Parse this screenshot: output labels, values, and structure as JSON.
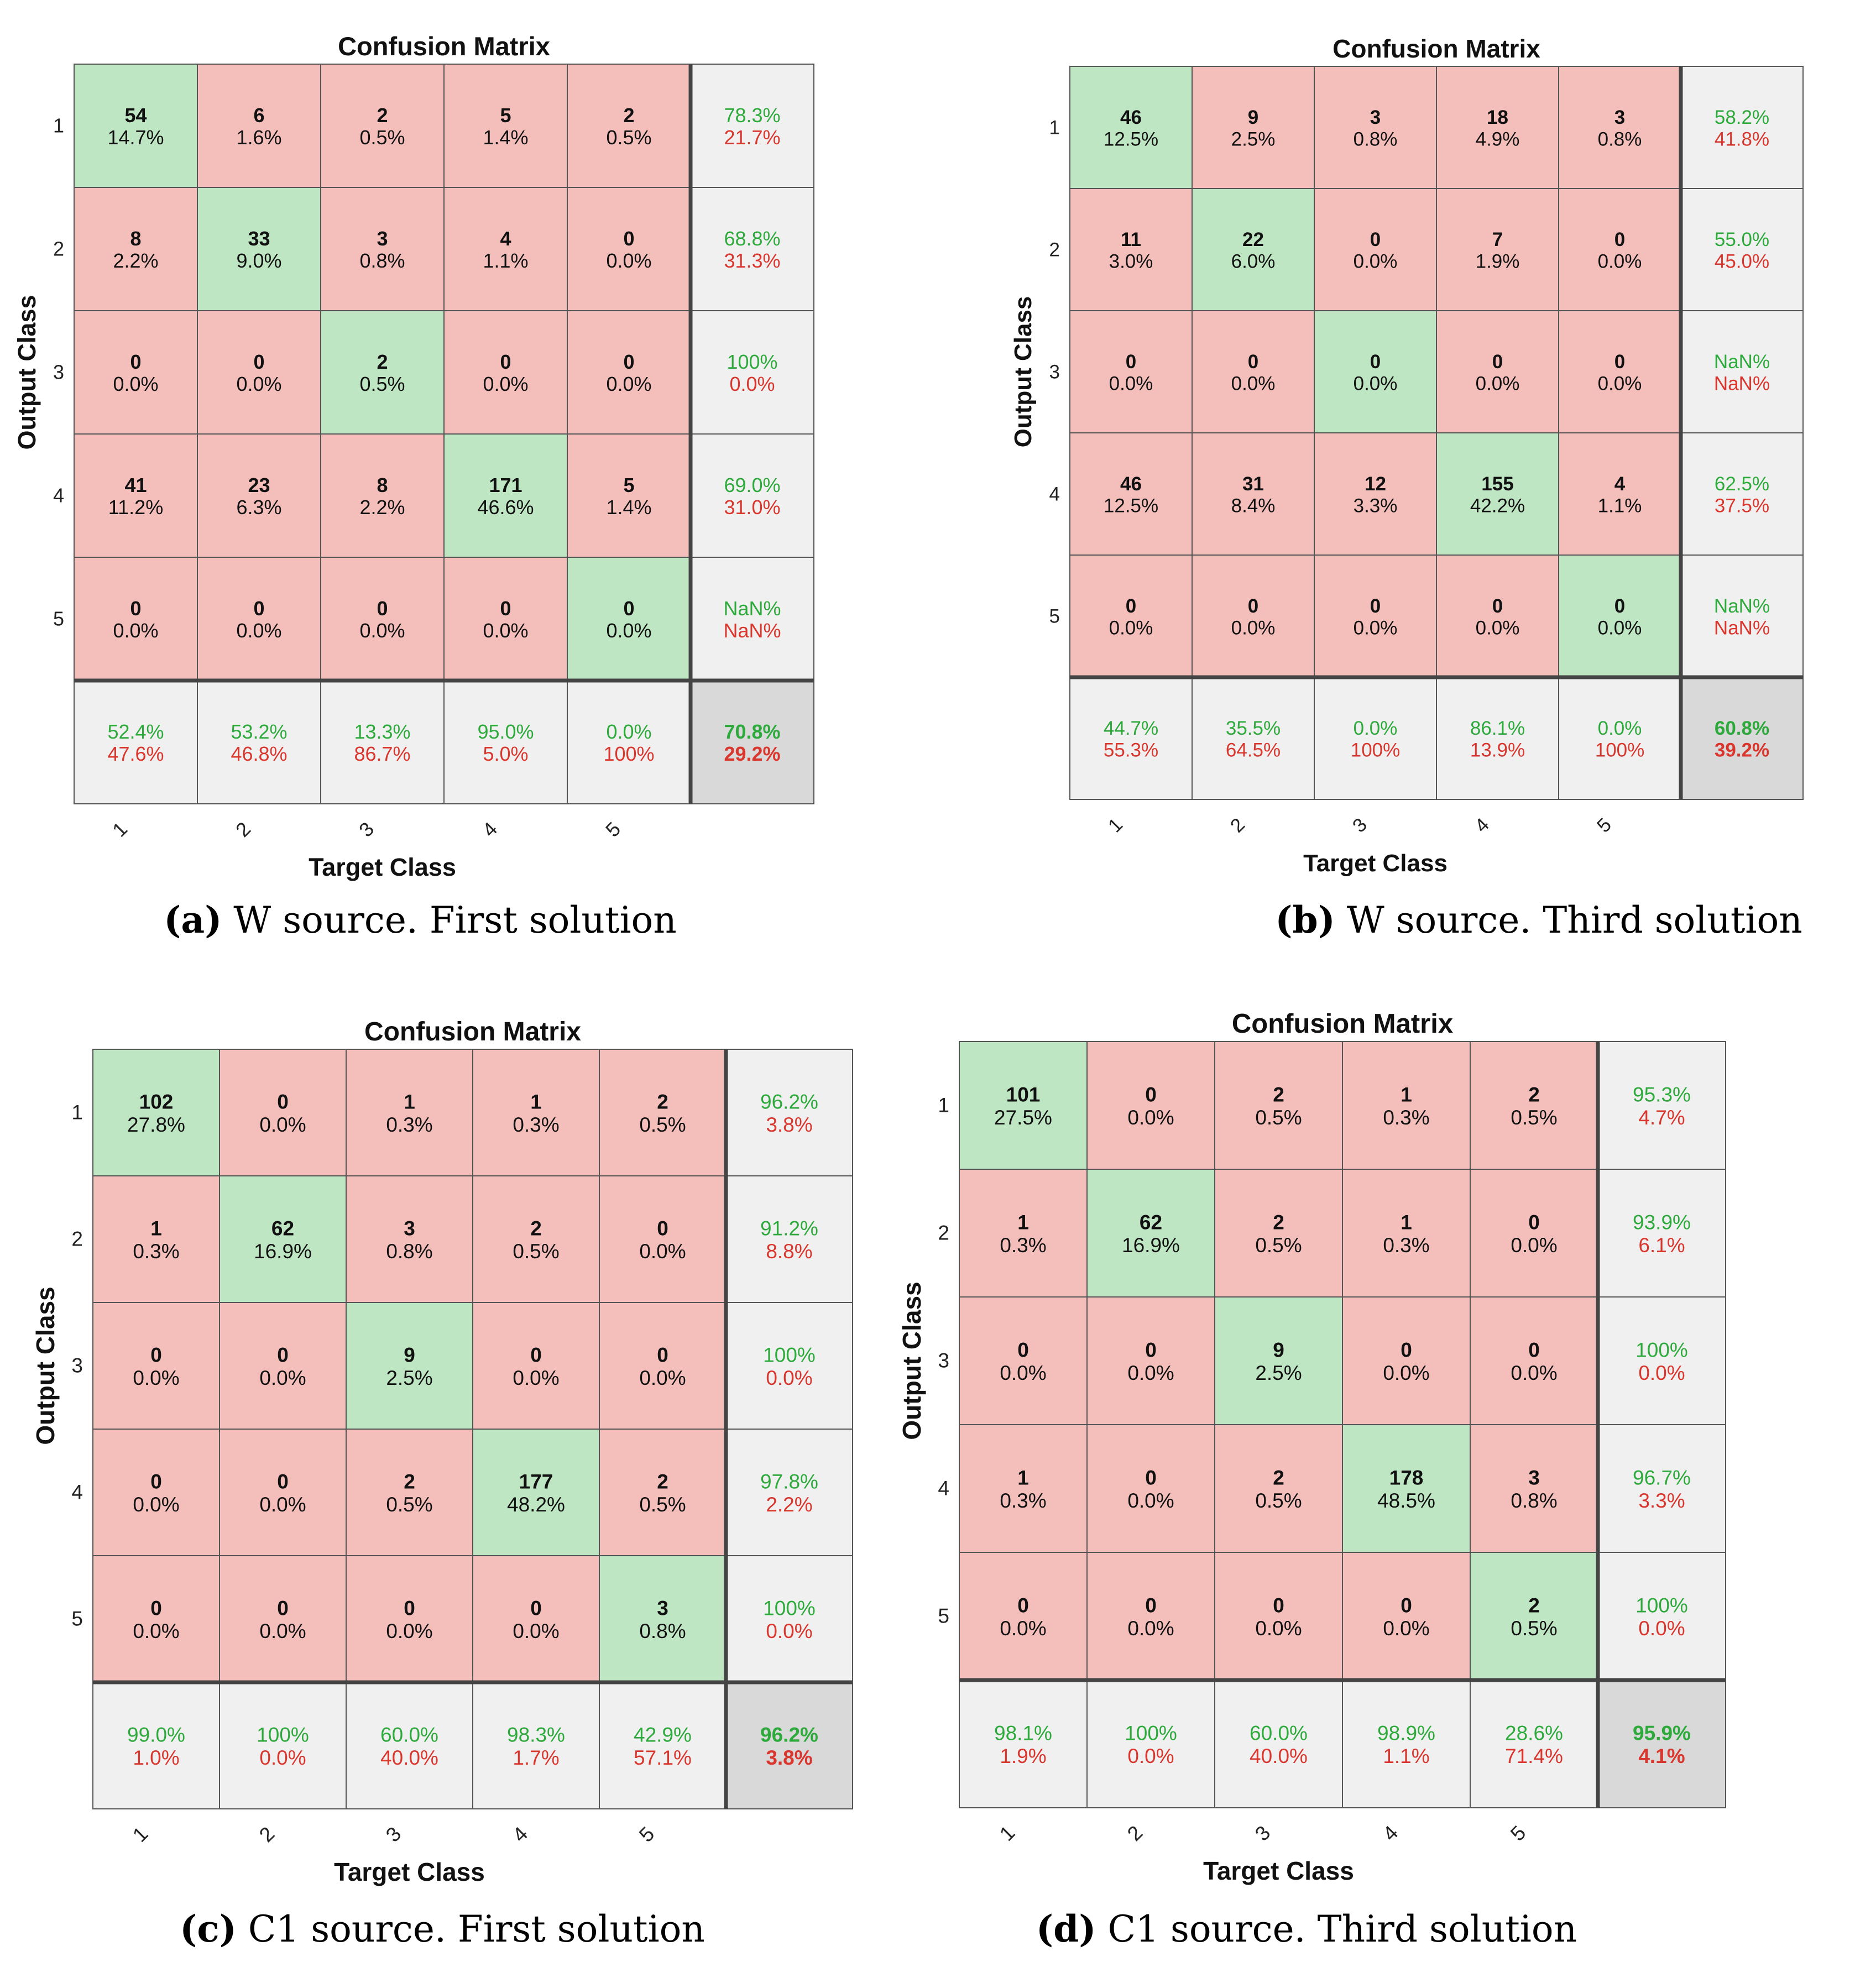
{
  "chart_data": [
    {
      "type": "heatmap",
      "label": "(a)",
      "caption": "W source. First solution",
      "title": "Confusion Matrix",
      "xlabel": "Target Class",
      "ylabel": "Output Class",
      "classes": [
        "1",
        "2",
        "3",
        "4",
        "5"
      ],
      "cells": [
        [
          [
            "54",
            "14.7%"
          ],
          [
            "6",
            "1.6%"
          ],
          [
            "2",
            "0.5%"
          ],
          [
            "5",
            "1.4%"
          ],
          [
            "2",
            "0.5%"
          ]
        ],
        [
          [
            "8",
            "2.2%"
          ],
          [
            "33",
            "9.0%"
          ],
          [
            "3",
            "0.8%"
          ],
          [
            "4",
            "1.1%"
          ],
          [
            "0",
            "0.0%"
          ]
        ],
        [
          [
            "0",
            "0.0%"
          ],
          [
            "0",
            "0.0%"
          ],
          [
            "2",
            "0.5%"
          ],
          [
            "0",
            "0.0%"
          ],
          [
            "0",
            "0.0%"
          ]
        ],
        [
          [
            "41",
            "11.2%"
          ],
          [
            "23",
            "6.3%"
          ],
          [
            "8",
            "2.2%"
          ],
          [
            "171",
            "46.6%"
          ],
          [
            "5",
            "1.4%"
          ]
        ],
        [
          [
            "0",
            "0.0%"
          ],
          [
            "0",
            "0.0%"
          ],
          [
            "0",
            "0.0%"
          ],
          [
            "0",
            "0.0%"
          ],
          [
            "0",
            "0.0%"
          ]
        ]
      ],
      "row_summary": [
        [
          "78.3%",
          "21.7%"
        ],
        [
          "68.8%",
          "31.3%"
        ],
        [
          "100%",
          "0.0%"
        ],
        [
          "69.0%",
          "31.0%"
        ],
        [
          "NaN%",
          "NaN%"
        ]
      ],
      "col_summary": [
        [
          "52.4%",
          "47.6%"
        ],
        [
          "53.2%",
          "46.8%"
        ],
        [
          "13.3%",
          "86.7%"
        ],
        [
          "95.0%",
          "5.0%"
        ],
        [
          "0.0%",
          "100%"
        ]
      ],
      "overall": [
        "70.8%",
        "29.2%"
      ]
    },
    {
      "type": "heatmap",
      "label": "(b)",
      "caption": "W source. Third solution",
      "title": "Confusion Matrix",
      "xlabel": "Target Class",
      "ylabel": "Output Class",
      "classes": [
        "1",
        "2",
        "3",
        "4",
        "5"
      ],
      "cells": [
        [
          [
            "46",
            "12.5%"
          ],
          [
            "9",
            "2.5%"
          ],
          [
            "3",
            "0.8%"
          ],
          [
            "18",
            "4.9%"
          ],
          [
            "3",
            "0.8%"
          ]
        ],
        [
          [
            "11",
            "3.0%"
          ],
          [
            "22",
            "6.0%"
          ],
          [
            "0",
            "0.0%"
          ],
          [
            "7",
            "1.9%"
          ],
          [
            "0",
            "0.0%"
          ]
        ],
        [
          [
            "0",
            "0.0%"
          ],
          [
            "0",
            "0.0%"
          ],
          [
            "0",
            "0.0%"
          ],
          [
            "0",
            "0.0%"
          ],
          [
            "0",
            "0.0%"
          ]
        ],
        [
          [
            "46",
            "12.5%"
          ],
          [
            "31",
            "8.4%"
          ],
          [
            "12",
            "3.3%"
          ],
          [
            "155",
            "42.2%"
          ],
          [
            "4",
            "1.1%"
          ]
        ],
        [
          [
            "0",
            "0.0%"
          ],
          [
            "0",
            "0.0%"
          ],
          [
            "0",
            "0.0%"
          ],
          [
            "0",
            "0.0%"
          ],
          [
            "0",
            "0.0%"
          ]
        ]
      ],
      "row_summary": [
        [
          "58.2%",
          "41.8%"
        ],
        [
          "55.0%",
          "45.0%"
        ],
        [
          "NaN%",
          "NaN%"
        ],
        [
          "62.5%",
          "37.5%"
        ],
        [
          "NaN%",
          "NaN%"
        ]
      ],
      "col_summary": [
        [
          "44.7%",
          "55.3%"
        ],
        [
          "35.5%",
          "64.5%"
        ],
        [
          "0.0%",
          "100%"
        ],
        [
          "86.1%",
          "13.9%"
        ],
        [
          "0.0%",
          "100%"
        ]
      ],
      "overall": [
        "60.8%",
        "39.2%"
      ]
    },
    {
      "type": "heatmap",
      "label": "(c)",
      "caption": "C1 source. First solution",
      "title": "Confusion Matrix",
      "xlabel": "Target Class",
      "ylabel": "Output Class",
      "classes": [
        "1",
        "2",
        "3",
        "4",
        "5"
      ],
      "cells": [
        [
          [
            "102",
            "27.8%"
          ],
          [
            "0",
            "0.0%"
          ],
          [
            "1",
            "0.3%"
          ],
          [
            "1",
            "0.3%"
          ],
          [
            "2",
            "0.5%"
          ]
        ],
        [
          [
            "1",
            "0.3%"
          ],
          [
            "62",
            "16.9%"
          ],
          [
            "3",
            "0.8%"
          ],
          [
            "2",
            "0.5%"
          ],
          [
            "0",
            "0.0%"
          ]
        ],
        [
          [
            "0",
            "0.0%"
          ],
          [
            "0",
            "0.0%"
          ],
          [
            "9",
            "2.5%"
          ],
          [
            "0",
            "0.0%"
          ],
          [
            "0",
            "0.0%"
          ]
        ],
        [
          [
            "0",
            "0.0%"
          ],
          [
            "0",
            "0.0%"
          ],
          [
            "2",
            "0.5%"
          ],
          [
            "177",
            "48.2%"
          ],
          [
            "2",
            "0.5%"
          ]
        ],
        [
          [
            "0",
            "0.0%"
          ],
          [
            "0",
            "0.0%"
          ],
          [
            "0",
            "0.0%"
          ],
          [
            "0",
            "0.0%"
          ],
          [
            "3",
            "0.8%"
          ]
        ]
      ],
      "row_summary": [
        [
          "96.2%",
          "3.8%"
        ],
        [
          "91.2%",
          "8.8%"
        ],
        [
          "100%",
          "0.0%"
        ],
        [
          "97.8%",
          "2.2%"
        ],
        [
          "100%",
          "0.0%"
        ]
      ],
      "col_summary": [
        [
          "99.0%",
          "1.0%"
        ],
        [
          "100%",
          "0.0%"
        ],
        [
          "60.0%",
          "40.0%"
        ],
        [
          "98.3%",
          "1.7%"
        ],
        [
          "42.9%",
          "57.1%"
        ]
      ],
      "overall": [
        "96.2%",
        "3.8%"
      ]
    },
    {
      "type": "heatmap",
      "label": "(d)",
      "caption": "C1 source. Third solution",
      "title": "Confusion Matrix",
      "xlabel": "Target Class",
      "ylabel": "Output Class",
      "classes": [
        "1",
        "2",
        "3",
        "4",
        "5"
      ],
      "cells": [
        [
          [
            "101",
            "27.5%"
          ],
          [
            "0",
            "0.0%"
          ],
          [
            "2",
            "0.5%"
          ],
          [
            "1",
            "0.3%"
          ],
          [
            "2",
            "0.5%"
          ]
        ],
        [
          [
            "1",
            "0.3%"
          ],
          [
            "62",
            "16.9%"
          ],
          [
            "2",
            "0.5%"
          ],
          [
            "1",
            "0.3%"
          ],
          [
            "0",
            "0.0%"
          ]
        ],
        [
          [
            "0",
            "0.0%"
          ],
          [
            "0",
            "0.0%"
          ],
          [
            "9",
            "2.5%"
          ],
          [
            "0",
            "0.0%"
          ],
          [
            "0",
            "0.0%"
          ]
        ],
        [
          [
            "1",
            "0.3%"
          ],
          [
            "0",
            "0.0%"
          ],
          [
            "2",
            "0.5%"
          ],
          [
            "178",
            "48.5%"
          ],
          [
            "3",
            "0.8%"
          ]
        ],
        [
          [
            "0",
            "0.0%"
          ],
          [
            "0",
            "0.0%"
          ],
          [
            "0",
            "0.0%"
          ],
          [
            "0",
            "0.0%"
          ],
          [
            "2",
            "0.5%"
          ]
        ]
      ],
      "row_summary": [
        [
          "95.3%",
          "4.7%"
        ],
        [
          "93.9%",
          "6.1%"
        ],
        [
          "100%",
          "0.0%"
        ],
        [
          "96.7%",
          "3.3%"
        ],
        [
          "100%",
          "0.0%"
        ]
      ],
      "col_summary": [
        [
          "98.1%",
          "1.9%"
        ],
        [
          "100%",
          "0.0%"
        ],
        [
          "60.0%",
          "40.0%"
        ],
        [
          "98.9%",
          "1.1%"
        ],
        [
          "28.6%",
          "71.4%"
        ]
      ],
      "overall": [
        "95.9%",
        "4.1%"
      ]
    }
  ],
  "colors": {
    "diag": "#bfe6c3",
    "offdiag": "#f4bfbb",
    "summary": "#f0f0f0",
    "overall": "#d9d9d9",
    "green_text": "#2eaa3c",
    "red_text": "#d9362e",
    "grid": "#555555",
    "thick": "#444444"
  }
}
